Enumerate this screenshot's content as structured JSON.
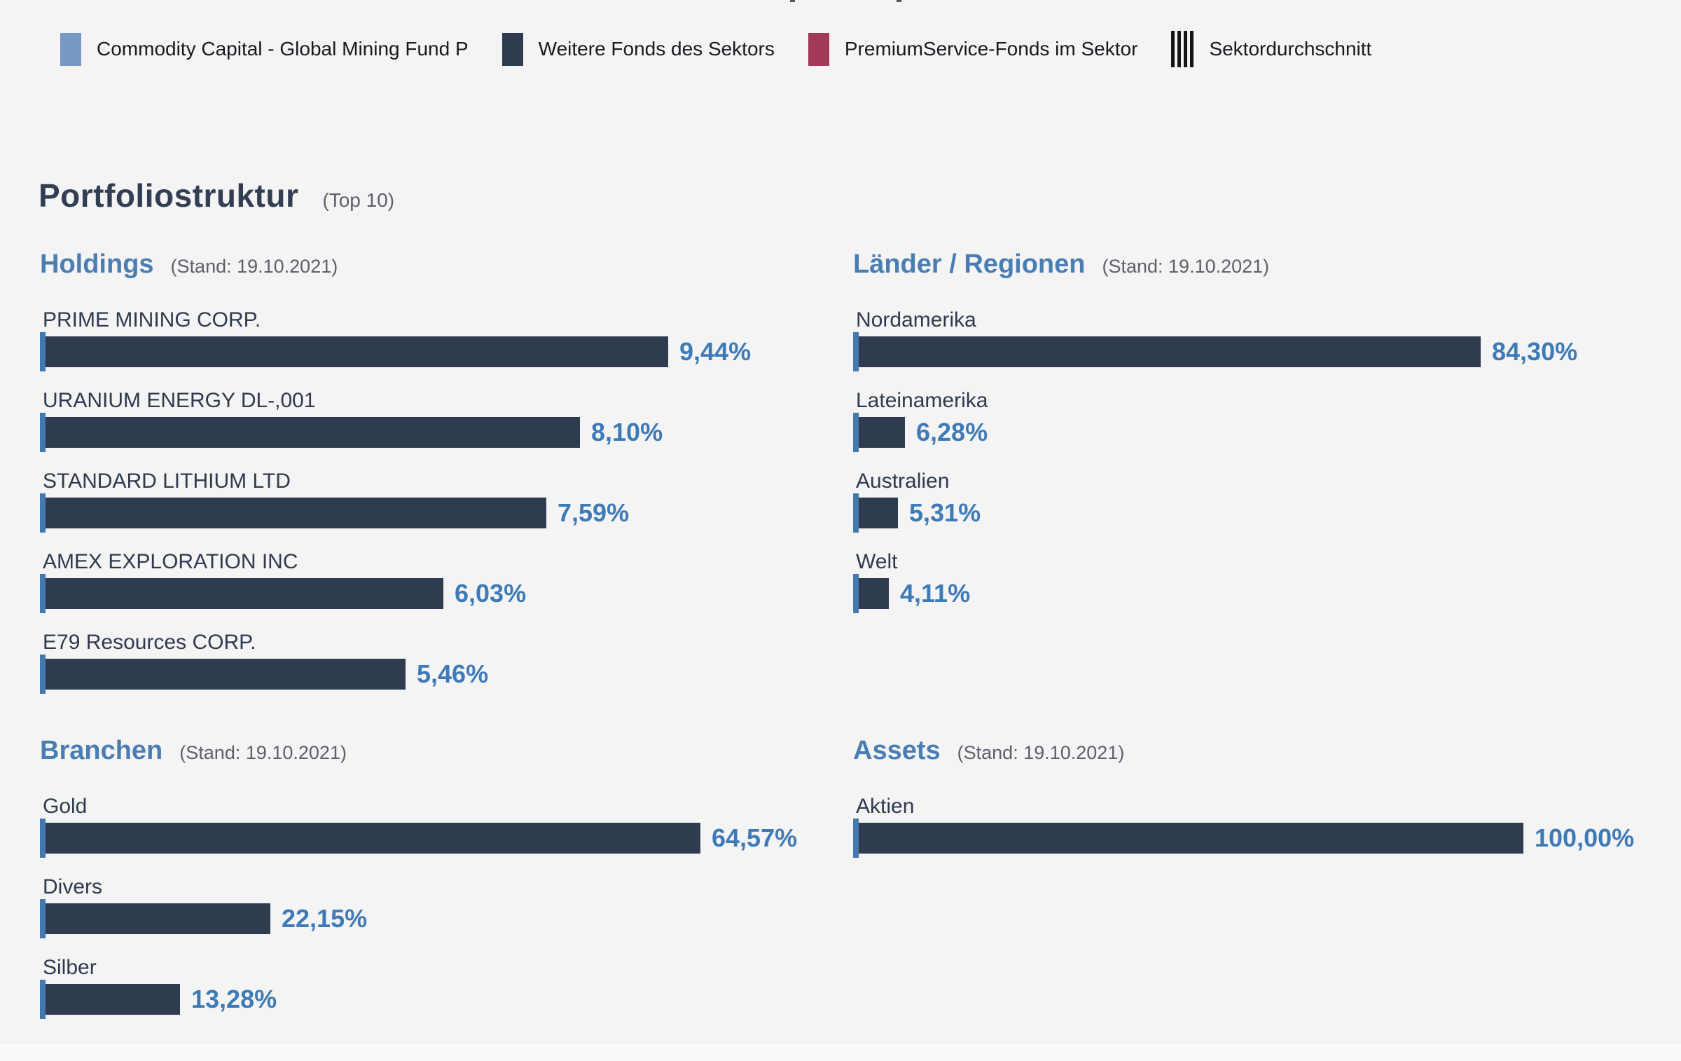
{
  "page": {
    "title": "Portfoliostruktur",
    "title_suffix": "(Top 10)"
  },
  "colors": {
    "background": "#f4f4f5",
    "bar": "#2f3b4f",
    "bar_tick": "#4379af",
    "value_text": "#3e7ab6",
    "section_heading": "#4a7db1",
    "legend_fund": "#7899c6",
    "legend_other_funds": "#2f3b4f",
    "legend_premium": "#a23a57",
    "legend_average": "#151515"
  },
  "legend": {
    "items": [
      {
        "label": "Commodity Capital - Global Mining Fund P",
        "swatch": "solid",
        "color": "#7899c6",
        "icon": "fund-swatch"
      },
      {
        "label": "Weitere Fonds des Sektors",
        "swatch": "solid",
        "color": "#2f3b4f",
        "icon": "other-funds-swatch"
      },
      {
        "label": "PremiumService-Fonds im Sektor",
        "swatch": "solid",
        "color": "#a23a57",
        "icon": "premium-funds-swatch"
      },
      {
        "label": "Sektordurchschnitt",
        "swatch": "stripes",
        "color": "#151515",
        "icon": "sector-average-stripes-icon"
      }
    ]
  },
  "chart_data": [
    {
      "id": "holdings",
      "type": "bar",
      "orientation": "horizontal",
      "title": "Holdings",
      "stand": "(Stand: 19.10.2021)",
      "unit": "%",
      "categories": [
        "PRIME MINING CORP.",
        "URANIUM ENERGY DL-,001",
        "STANDARD LITHIUM LTD",
        "AMEX EXPLORATION INC",
        "E79 Resources CORP."
      ],
      "values": [
        9.44,
        8.1,
        7.59,
        6.03,
        5.46
      ],
      "value_labels": [
        "9,44%",
        "8,10%",
        "7,59%",
        "6,03%",
        "5,46%"
      ]
    },
    {
      "id": "laender",
      "type": "bar",
      "orientation": "horizontal",
      "title": "Länder / Regionen",
      "stand": "(Stand: 19.10.2021)",
      "unit": "%",
      "categories": [
        "Nordamerika",
        "Lateinamerika",
        "Australien",
        "Welt"
      ],
      "values": [
        84.3,
        6.28,
        5.31,
        4.11
      ],
      "value_labels": [
        "84,30%",
        "6,28%",
        "5,31%",
        "4,11%"
      ]
    },
    {
      "id": "branchen",
      "type": "bar",
      "orientation": "horizontal",
      "title": "Branchen",
      "stand": "(Stand: 19.10.2021)",
      "unit": "%",
      "categories": [
        "Gold",
        "Divers",
        "Silber"
      ],
      "values": [
        64.57,
        22.15,
        13.28
      ],
      "value_labels": [
        "64,57%",
        "22,15%",
        "13,28%"
      ]
    },
    {
      "id": "assets",
      "type": "bar",
      "orientation": "horizontal",
      "title": "Assets",
      "stand": "(Stand: 19.10.2021)",
      "unit": "%",
      "categories": [
        "Aktien"
      ],
      "values": [
        100.0
      ],
      "value_labels": [
        "100,00%"
      ]
    }
  ]
}
